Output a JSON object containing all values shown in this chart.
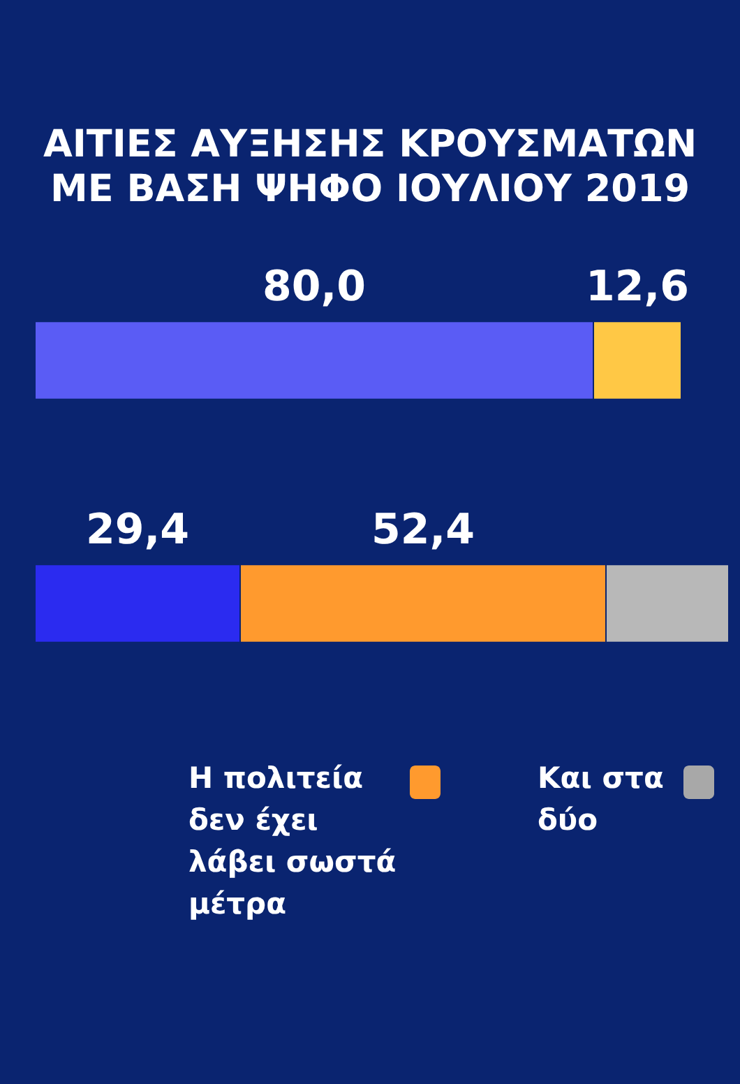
{
  "chart_data": {
    "type": "bar",
    "orientation": "horizontal",
    "stacked": true,
    "title": "ΑΙΤΙΕΣ ΑΥΞΗΣΗΣ ΚΡΟΥΣΜΑΤΩΝ ΜΕ ΒΑΣΗ ΨΗΦΟ ΙΟΥΛΙΟΥ 2019",
    "categories": [
      null,
      null
    ],
    "xlim": [
      0,
      100
    ],
    "tick_labels": false,
    "grid": false,
    "legend": "bottom",
    "series": [
      {
        "colors": [
          "#5a5cf5",
          "#2b2bf0"
        ],
        "values": [
          80.0,
          29.4
        ],
        "value_labels": [
          "80,0",
          "29,4"
        ]
      },
      {
        "name": "Η πολιτεία δεν έχει λάβει σωστά μέτρα",
        "color": "#ff9a2e",
        "colors": [
          "#ffc845",
          "#ff9a2e"
        ],
        "values": [
          12.6,
          52.4
        ],
        "value_labels": [
          "12,6",
          "52,4"
        ]
      },
      {
        "name": "Και στα δύο",
        "color": "#a8a8a8",
        "colors": [
          "#a8a8a8",
          "#b8b8b8"
        ],
        "values": [
          null,
          17.6
        ],
        "value_labels": [
          null,
          null
        ]
      }
    ]
  }
}
